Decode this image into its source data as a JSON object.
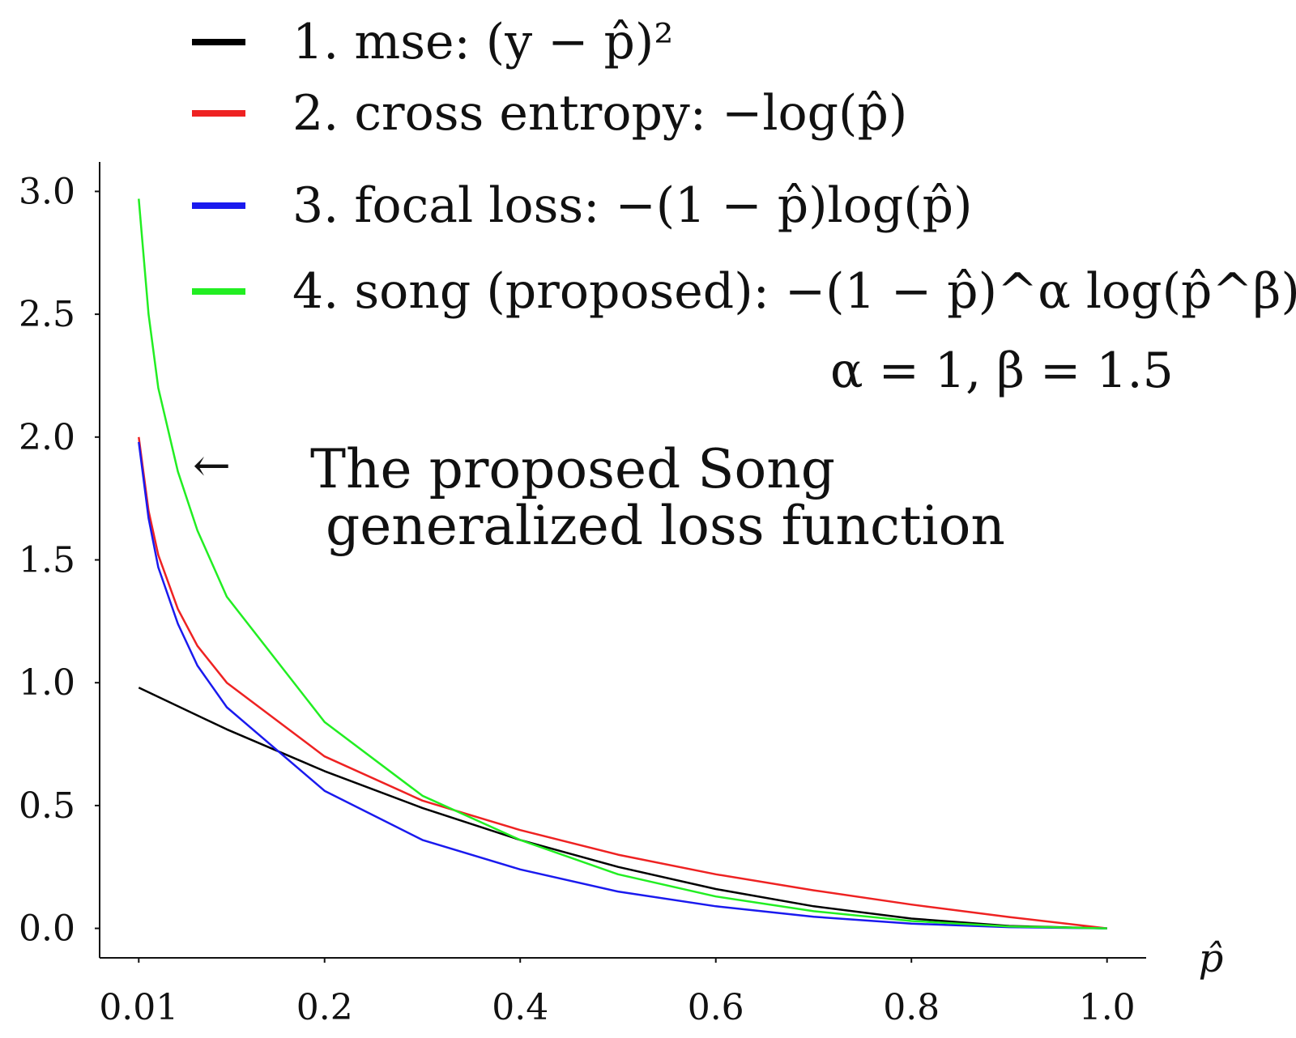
{
  "chart_data": {
    "type": "line",
    "xlabel": "p̂",
    "ylabel": "",
    "xlim": [
      -0.03,
      1.04
    ],
    "ylim": [
      -0.12,
      3.12
    ],
    "xticks": [
      0.01,
      0.2,
      0.4,
      0.6,
      0.8,
      1.0
    ],
    "xtick_labels": [
      "0.01",
      "0.2",
      "0.4",
      "0.6",
      "0.8",
      "1.0"
    ],
    "yticks": [
      0.0,
      0.5,
      1.0,
      1.5,
      2.0,
      2.5,
      3.0
    ],
    "ytick_labels": [
      "0.0",
      "0.5",
      "1.0",
      "1.5",
      "2.0",
      "2.5",
      "3.0"
    ],
    "grid": false,
    "legend_position": "top",
    "series": [
      {
        "name": "1. mse: (y − p̂)²",
        "color": "#000000",
        "x": [
          0.01,
          0.1,
          0.2,
          0.3,
          0.4,
          0.5,
          0.6,
          0.7,
          0.8,
          0.9,
          1.0
        ],
        "y": [
          0.98,
          0.81,
          0.64,
          0.49,
          0.36,
          0.25,
          0.16,
          0.09,
          0.04,
          0.01,
          0.0
        ]
      },
      {
        "name": "2. cross entropy: −log(p̂)",
        "color": "#ee2222",
        "x": [
          0.01,
          0.02,
          0.03,
          0.05,
          0.07,
          0.1,
          0.2,
          0.3,
          0.4,
          0.5,
          0.6,
          0.7,
          0.8,
          0.9,
          1.0
        ],
        "y": [
          2.0,
          1.7,
          1.52,
          1.3,
          1.15,
          1.0,
          0.7,
          0.52,
          0.4,
          0.3,
          0.22,
          0.155,
          0.097,
          0.046,
          0.0
        ]
      },
      {
        "name": "3. focal loss: −(1 − p̂)log(p̂)",
        "color": "#1a1aee",
        "x": [
          0.01,
          0.02,
          0.03,
          0.05,
          0.07,
          0.1,
          0.2,
          0.3,
          0.4,
          0.5,
          0.6,
          0.7,
          0.8,
          0.9,
          1.0
        ],
        "y": [
          1.98,
          1.67,
          1.47,
          1.24,
          1.07,
          0.9,
          0.56,
          0.36,
          0.24,
          0.15,
          0.09,
          0.047,
          0.019,
          0.005,
          0.0
        ]
      },
      {
        "name": "4. song (proposed): −(1 − p̂)^α log(p̂^β),",
        "color": "#22ee22",
        "x": [
          0.01,
          0.02,
          0.03,
          0.05,
          0.07,
          0.1,
          0.2,
          0.3,
          0.4,
          0.5,
          0.6,
          0.7,
          0.8,
          0.9,
          1.0
        ],
        "y": [
          2.97,
          2.5,
          2.2,
          1.86,
          1.62,
          1.35,
          0.84,
          0.54,
          0.36,
          0.22,
          0.13,
          0.07,
          0.03,
          0.008,
          0.0
        ]
      }
    ],
    "legend_extra_line": "α = 1, β = 1.5",
    "annotation": {
      "arrow": "←",
      "lines": [
        "The proposed Song",
        "generalized loss function"
      ]
    }
  }
}
